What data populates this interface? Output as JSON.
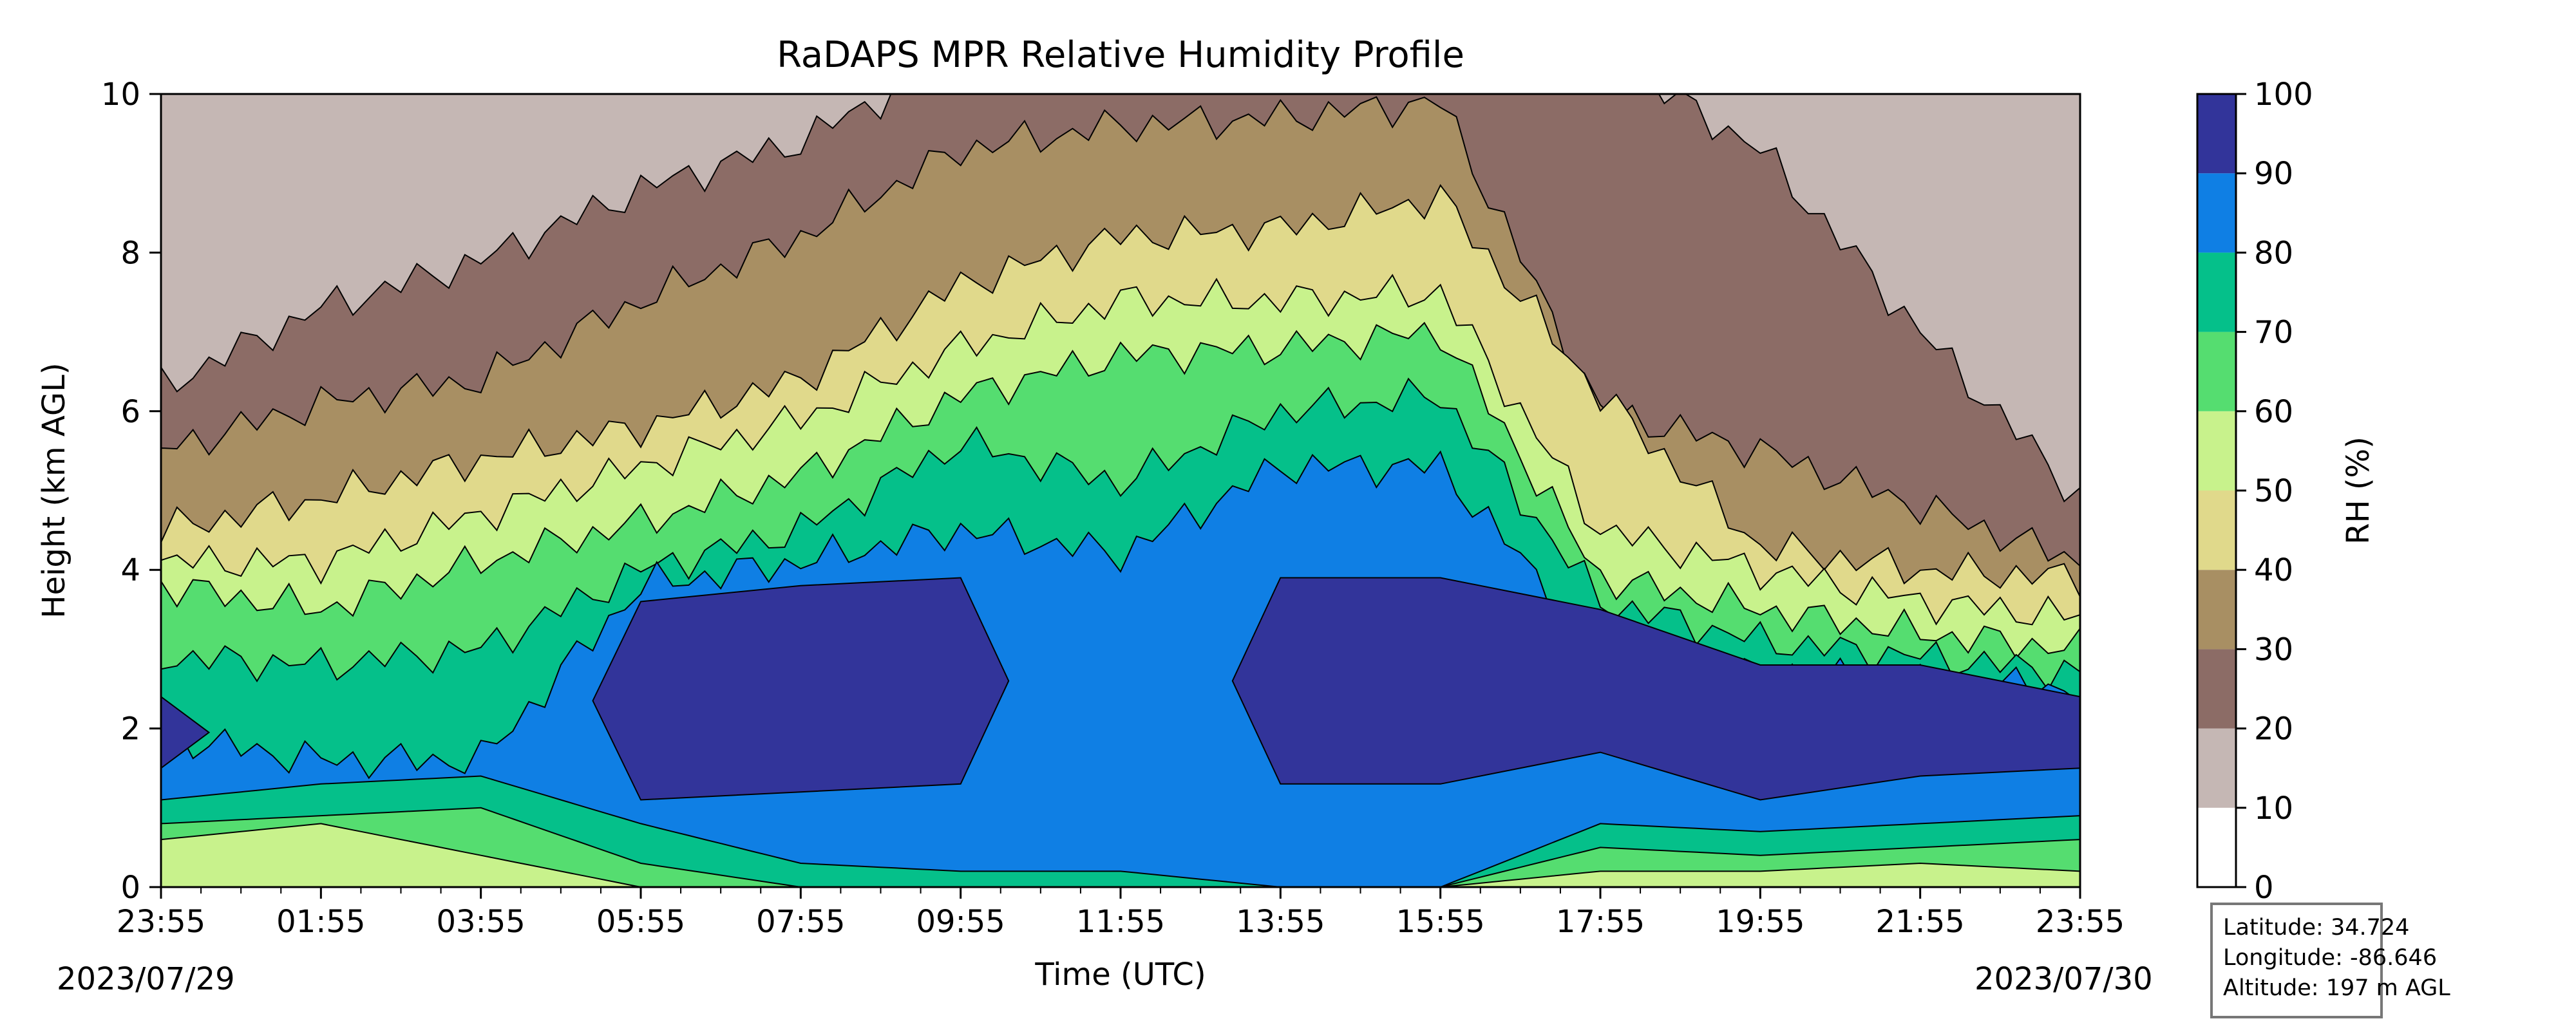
{
  "chart_data": {
    "type": "heatmap",
    "title": "RaDAPS MPR Relative Humidity Profile",
    "xlabel": "Time (UTC)",
    "ylabel": "Height (km AGL)",
    "x_ticks": [
      "23:55",
      "01:55",
      "03:55",
      "05:55",
      "07:55",
      "09:55",
      "11:55",
      "13:55",
      "15:55",
      "17:55",
      "19:55",
      "21:55",
      "23:55"
    ],
    "x_range_hours": [
      0,
      24
    ],
    "start_date_label": "2023/07/29",
    "end_date_label": "2023/07/30",
    "y_ticks": [
      0,
      2,
      4,
      6,
      8,
      10
    ],
    "ylim": [
      0,
      10
    ],
    "colorbar": {
      "label": "RH (%)",
      "ticks": [
        0,
        10,
        20,
        30,
        40,
        50,
        60,
        70,
        80,
        90,
        100
      ],
      "levels": [
        {
          "range": [
            0,
            10
          ],
          "color": "#ffffff"
        },
        {
          "range": [
            10,
            20
          ],
          "color": "#c5b7b4"
        },
        {
          "range": [
            20,
            30
          ],
          "color": "#8c6c66"
        },
        {
          "range": [
            30,
            40
          ],
          "color": "#a88f63"
        },
        {
          "range": [
            40,
            50
          ],
          "color": "#e0d98b"
        },
        {
          "range": [
            50,
            60
          ],
          "color": "#c8f28c"
        },
        {
          "range": [
            60,
            70
          ],
          "color": "#55dd70"
        },
        {
          "range": [
            70,
            80
          ],
          "color": "#05c08a"
        },
        {
          "range": [
            80,
            90
          ],
          "color": "#0f7fe4"
        },
        {
          "range": [
            90,
            100
          ],
          "color": "#32349a"
        }
      ]
    },
    "contour_boundaries_km": {
      "hours": [
        0,
        2,
        4,
        6,
        8,
        10,
        12,
        14,
        16,
        18,
        20,
        22,
        24
      ],
      "rh10": [
        11,
        11,
        11,
        11,
        11,
        11,
        11,
        11,
        11,
        11,
        11,
        11,
        11
      ],
      "rh20": [
        6.3,
        7.3,
        7.9,
        8.8,
        9.4,
        10.5,
        10.5,
        10.5,
        10.5,
        10.5,
        9.3,
        7.0,
        4.9
      ],
      "rh30": [
        5.5,
        6.1,
        6.4,
        7.4,
        8.2,
        9.3,
        9.6,
        9.7,
        9.9,
        6.0,
        5.5,
        4.8,
        4.1
      ],
      "rh40": [
        4.5,
        4.9,
        5.4,
        5.8,
        6.4,
        7.6,
        8.2,
        8.3,
        8.7,
        6.2,
        4.3,
        4.0,
        3.9
      ],
      "rh50": [
        4.1,
        4.1,
        4.7,
        5.3,
        5.9,
        6.8,
        7.4,
        7.4,
        7.5,
        4.5,
        4.0,
        3.6,
        3.4
      ],
      "rh60": [
        3.8,
        3.5,
        4.1,
        4.6,
        5.2,
        6.2,
        6.7,
        6.8,
        7.0,
        3.9,
        3.5,
        3.2,
        3.0
      ],
      "rh70": [
        2.9,
        2.8,
        3.0,
        4.0,
        4.5,
        5.6,
        5.1,
        6.0,
        6.2,
        3.6,
        3.1,
        2.9,
        2.7
      ],
      "rh80": [
        1.9,
        1.6,
        1.6,
        3.8,
        4.1,
        4.5,
        4.2,
        5.3,
        5.3,
        3.0,
        2.7,
        2.6,
        2.5
      ],
      "rh90_upper": [
        2.4,
        0,
        0,
        3.6,
        3.8,
        3.9,
        0,
        3.9,
        3.9,
        3.5,
        2.8,
        2.8,
        2.4
      ],
      "rh90_lower": [
        1.5,
        0,
        0,
        1.1,
        1.2,
        1.3,
        0,
        1.3,
        1.3,
        1.7,
        1.1,
        1.4,
        1.5
      ],
      "rh80_lower": [
        1.1,
        1.3,
        1.4,
        0.8,
        0.3,
        0.2,
        0.2,
        0.0,
        0.0,
        0.8,
        0.7,
        0.8,
        0.9
      ],
      "rh70_lower": [
        0.8,
        0.9,
        1.0,
        0.3,
        0.0,
        0.0,
        0.0,
        0.0,
        0.0,
        0.5,
        0.4,
        0.5,
        0.6
      ],
      "rh60_lower": [
        0.6,
        0.8,
        0.4,
        0.0,
        0.0,
        0.0,
        0.0,
        0.0,
        0.0,
        0.2,
        0.2,
        0.3,
        0.2
      ]
    }
  },
  "station": {
    "latitude": "Latitude: 34.724",
    "longitude": "Longitude: -86.646",
    "altitude": "Altitude: 197 m AGL"
  }
}
